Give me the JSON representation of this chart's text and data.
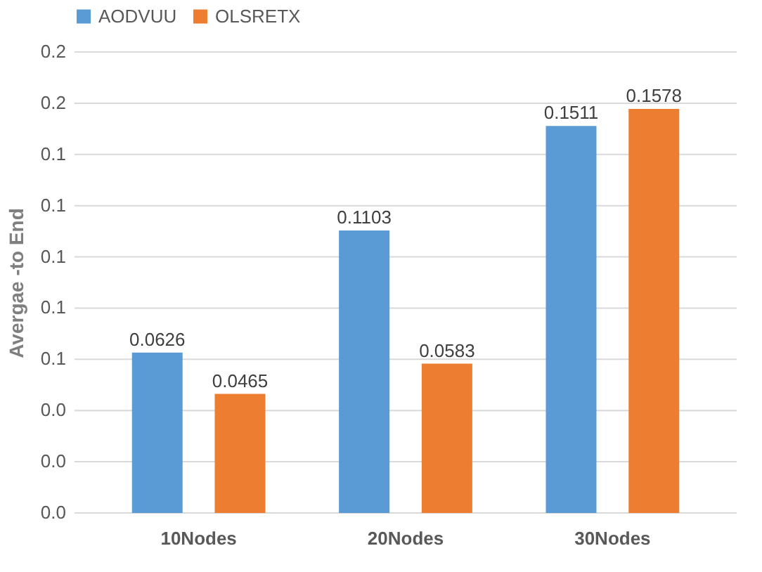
{
  "chart_data": {
    "type": "bar",
    "ylabel": "Avergae -to End",
    "categories": [
      "10Nodes",
      "20Nodes",
      "30Nodes"
    ],
    "series": [
      {
        "name": "AODVUU",
        "color": "#5b9bd5",
        "values": [
          0.0626,
          0.1103,
          0.1511
        ]
      },
      {
        "name": "OLSRETX",
        "color": "#ed7d31",
        "values": [
          0.0465,
          0.0583,
          0.1578
        ]
      }
    ],
    "ylim": [
      0,
      0.18
    ],
    "yticks": [
      {
        "value": 0,
        "label": "0.0"
      },
      {
        "value": 0.02,
        "label": "0.0"
      },
      {
        "value": 0.04,
        "label": "0.0"
      },
      {
        "value": 0.06,
        "label": "0.1"
      },
      {
        "value": 0.08,
        "label": "0.1"
      },
      {
        "value": 0.1,
        "label": "0.1"
      },
      {
        "value": 0.12,
        "label": "0.1"
      },
      {
        "value": 0.14,
        "label": "0.1"
      },
      {
        "value": 0.16,
        "label": "0.2"
      },
      {
        "value": 0.18,
        "label": "0.2"
      }
    ],
    "data_labels": true,
    "grid": "y",
    "legend": "top"
  }
}
